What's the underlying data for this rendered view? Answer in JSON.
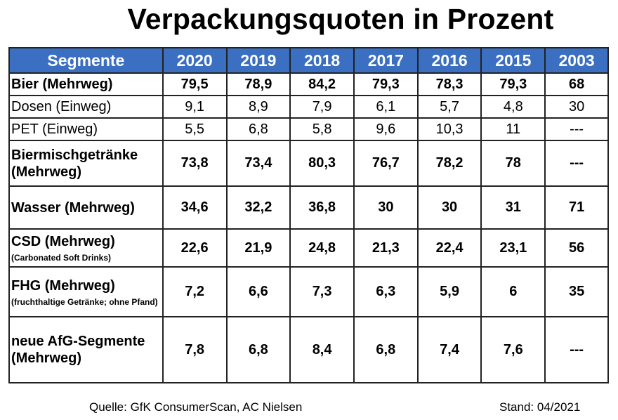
{
  "title": "Verpackungsquoten in Prozent",
  "chart_data": {
    "type": "table",
    "columns": [
      "Segmente",
      "2020",
      "2019",
      "2018",
      "2017",
      "2016",
      "2015",
      "2003"
    ],
    "rows": [
      {
        "segment": "Bier (Mehrweg)",
        "note": "",
        "bold": true,
        "values": [
          "79,5",
          "78,9",
          "84,2",
          "79,3",
          "78,3",
          "79,3",
          "68"
        ]
      },
      {
        "segment": "Dosen (Einweg)",
        "note": "",
        "bold": false,
        "values": [
          "9,1",
          "8,9",
          "7,9",
          "6,1",
          "5,7",
          "4,8",
          "30"
        ]
      },
      {
        "segment": "PET (Einweg)",
        "note": "",
        "bold": false,
        "values": [
          "5,5",
          "6,8",
          "5,8",
          "9,6",
          "10,3",
          "11",
          "---"
        ]
      },
      {
        "segment": "Biermischgetränke (Mehrweg)",
        "note": "",
        "bold": true,
        "values": [
          "73,8",
          "73,4",
          "80,3",
          "76,7",
          "78,2",
          "78",
          "---"
        ]
      },
      {
        "segment": "Wasser (Mehrweg)",
        "note": "",
        "bold": true,
        "values": [
          "34,6",
          "32,2",
          "36,8",
          "30",
          "30",
          "31",
          "71"
        ]
      },
      {
        "segment": "CSD (Mehrweg)",
        "note": "(Carbonated Soft Drinks)",
        "bold": true,
        "values": [
          "22,6",
          "21,9",
          "24,8",
          "21,3",
          "22,4",
          "23,1",
          "56"
        ]
      },
      {
        "segment": "FHG (Mehrweg)",
        "note": "(fruchthaltige Getränke; ohne Pfand)",
        "bold": true,
        "values": [
          "7,2",
          "6,6",
          "7,3",
          "6,3",
          "5,9",
          "6",
          "35"
        ]
      },
      {
        "segment": "neue AfG-Segmente (Mehrweg)",
        "note": "",
        "bold": true,
        "values": [
          "7,8",
          "6,8",
          "8,4",
          "6,8",
          "7,4",
          "7,6",
          "---"
        ]
      }
    ],
    "header_color": "#3b6fc2"
  },
  "footer": {
    "source": "Quelle: GfK ConsumerScan, AC Nielsen",
    "date": "Stand: 04/2021"
  }
}
